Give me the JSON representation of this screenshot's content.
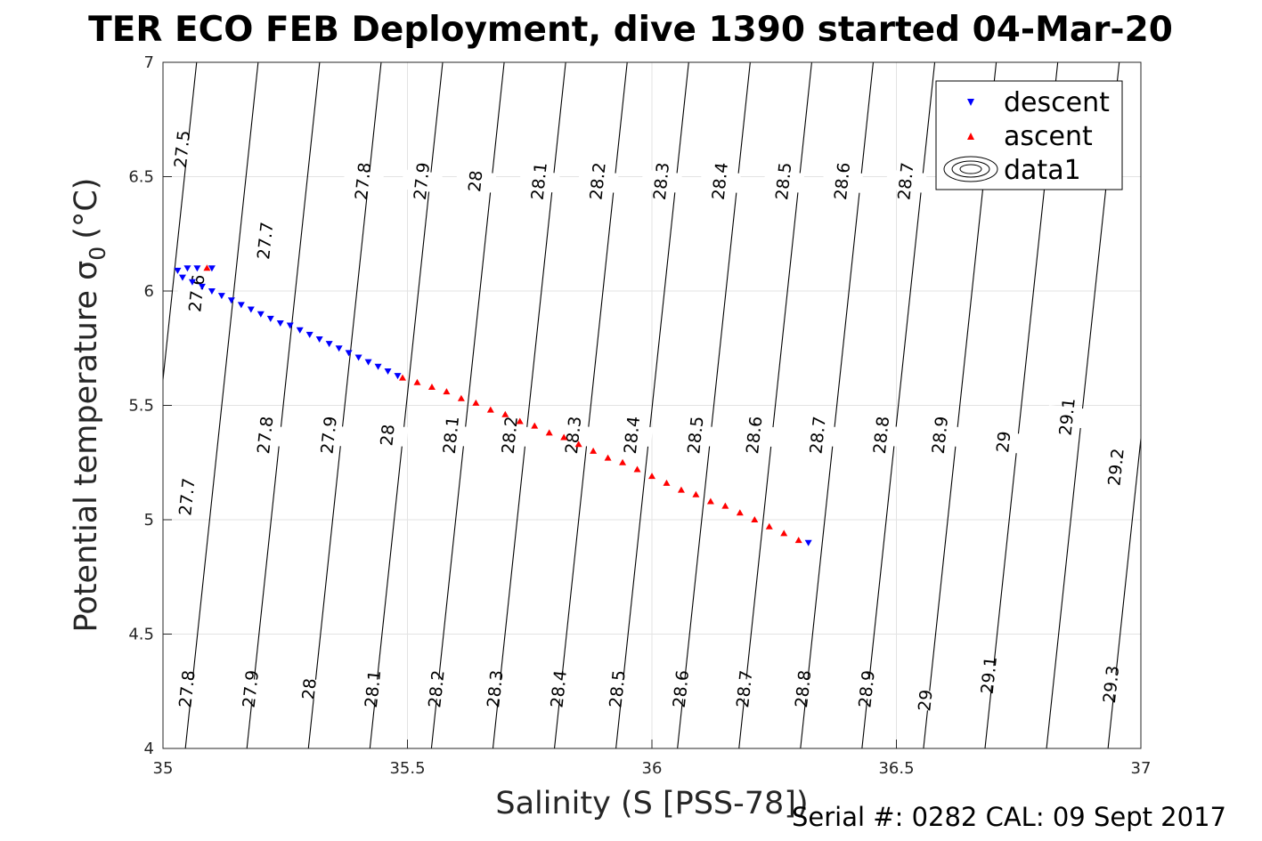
{
  "chart_data": {
    "type": "scatter",
    "title": "TER ECO FEB Deployment, dive 1390 started 04-Mar-20",
    "xlabel": "Salinity (S [PSS-78])",
    "ylabel": "Potential temperature σ",
    "ylabel_subscript": "0",
    "ylabel_unit": "(°C)",
    "xlim": [
      35,
      37
    ],
    "ylim": [
      4,
      7
    ],
    "xticks": [
      "35",
      "35.5",
      "36",
      "36.5",
      "37"
    ],
    "yticks": [
      "4",
      "4.5",
      "5",
      "5.5",
      "6",
      "6.5",
      "7"
    ],
    "grid": true,
    "legend_position": "top-right",
    "series": [
      {
        "name": "descent",
        "marker": "triangle-down",
        "color": "#0000ff",
        "points": [
          [
            35.03,
            6.09
          ],
          [
            35.05,
            6.1
          ],
          [
            35.07,
            6.1
          ],
          [
            35.1,
            6.1
          ],
          [
            35.04,
            6.06
          ],
          [
            35.06,
            6.04
          ],
          [
            35.08,
            6.02
          ],
          [
            35.1,
            6.0
          ],
          [
            35.12,
            5.98
          ],
          [
            35.14,
            5.96
          ],
          [
            35.16,
            5.94
          ],
          [
            35.18,
            5.92
          ],
          [
            35.2,
            5.9
          ],
          [
            35.22,
            5.88
          ],
          [
            35.24,
            5.86
          ],
          [
            35.26,
            5.85
          ],
          [
            35.28,
            5.83
          ],
          [
            35.3,
            5.81
          ],
          [
            35.32,
            5.79
          ],
          [
            35.34,
            5.77
          ],
          [
            35.36,
            5.75
          ],
          [
            35.38,
            5.73
          ],
          [
            35.4,
            5.71
          ],
          [
            35.42,
            5.69
          ],
          [
            35.44,
            5.67
          ],
          [
            35.46,
            5.65
          ],
          [
            35.48,
            5.63
          ],
          [
            36.32,
            4.9
          ]
        ]
      },
      {
        "name": "ascent",
        "marker": "triangle-up",
        "color": "#ff0000",
        "points": [
          [
            35.09,
            6.1
          ],
          [
            35.49,
            5.62
          ],
          [
            35.52,
            5.6
          ],
          [
            35.55,
            5.58
          ],
          [
            35.58,
            5.56
          ],
          [
            35.61,
            5.53
          ],
          [
            35.64,
            5.51
          ],
          [
            35.67,
            5.48
          ],
          [
            35.7,
            5.46
          ],
          [
            35.73,
            5.43
          ],
          [
            35.76,
            5.41
          ],
          [
            35.79,
            5.38
          ],
          [
            35.82,
            5.36
          ],
          [
            35.85,
            5.33
          ],
          [
            35.88,
            5.3
          ],
          [
            35.91,
            5.27
          ],
          [
            35.94,
            5.25
          ],
          [
            35.97,
            5.22
          ],
          [
            36.0,
            5.19
          ],
          [
            36.03,
            5.16
          ],
          [
            36.06,
            5.13
          ],
          [
            36.09,
            5.11
          ],
          [
            36.12,
            5.08
          ],
          [
            36.15,
            5.06
          ],
          [
            36.18,
            5.03
          ],
          [
            36.21,
            5.0
          ],
          [
            36.24,
            4.97
          ],
          [
            36.27,
            4.94
          ],
          [
            36.3,
            4.91
          ]
        ]
      },
      {
        "name": "data1",
        "type": "contour",
        "color": "#000000",
        "levels": [
          "27.5",
          "27.6",
          "27.7",
          "27.8",
          "27.9",
          "28",
          "28.1",
          "28.2",
          "28.3",
          "28.4",
          "28.5",
          "28.6",
          "28.7",
          "28.8",
          "28.9",
          "29",
          "29.1",
          "29.2",
          "29.3"
        ]
      }
    ],
    "contour_labels": [
      {
        "text": "27.5",
        "x": 35.04,
        "y": 6.62
      },
      {
        "text": "27.6",
        "x": 35.07,
        "y": 5.99
      },
      {
        "text": "27.7",
        "x": 35.21,
        "y": 6.22
      },
      {
        "text": "27.8",
        "x": 35.41,
        "y": 6.48
      },
      {
        "text": "27.9",
        "x": 35.53,
        "y": 6.48
      },
      {
        "text": "28",
        "x": 35.64,
        "y": 6.48
      },
      {
        "text": "28.1",
        "x": 35.77,
        "y": 6.48
      },
      {
        "text": "28.2",
        "x": 35.89,
        "y": 6.48
      },
      {
        "text": "28.3",
        "x": 36.02,
        "y": 6.48
      },
      {
        "text": "28.4",
        "x": 36.14,
        "y": 6.48
      },
      {
        "text": "28.5",
        "x": 36.27,
        "y": 6.48
      },
      {
        "text": "28.6",
        "x": 36.39,
        "y": 6.48
      },
      {
        "text": "28.7",
        "x": 36.52,
        "y": 6.48
      },
      {
        "text": "27.7",
        "x": 35.05,
        "y": 5.1
      },
      {
        "text": "27.8",
        "x": 35.21,
        "y": 5.37
      },
      {
        "text": "27.9",
        "x": 35.34,
        "y": 5.37
      },
      {
        "text": "28",
        "x": 35.46,
        "y": 5.37
      },
      {
        "text": "28.1",
        "x": 35.59,
        "y": 5.37
      },
      {
        "text": "28.2",
        "x": 35.71,
        "y": 5.37
      },
      {
        "text": "28.3",
        "x": 35.84,
        "y": 5.37
      },
      {
        "text": "28.4",
        "x": 35.96,
        "y": 5.37
      },
      {
        "text": "28.5",
        "x": 36.09,
        "y": 5.37
      },
      {
        "text": "28.6",
        "x": 36.21,
        "y": 5.37
      },
      {
        "text": "28.7",
        "x": 36.34,
        "y": 5.37
      },
      {
        "text": "28.8",
        "x": 36.47,
        "y": 5.37
      },
      {
        "text": "28.9",
        "x": 36.59,
        "y": 5.37
      },
      {
        "text": "29",
        "x": 36.72,
        "y": 5.34
      },
      {
        "text": "29.1",
        "x": 36.85,
        "y": 5.45
      },
      {
        "text": "29.2",
        "x": 36.95,
        "y": 5.23
      },
      {
        "text": "27.8",
        "x": 35.05,
        "y": 4.26
      },
      {
        "text": "27.9",
        "x": 35.18,
        "y": 4.26
      },
      {
        "text": "28",
        "x": 35.3,
        "y": 4.26
      },
      {
        "text": "28.1",
        "x": 35.43,
        "y": 4.26
      },
      {
        "text": "28.2",
        "x": 35.56,
        "y": 4.26
      },
      {
        "text": "28.3",
        "x": 35.68,
        "y": 4.26
      },
      {
        "text": "28.4",
        "x": 35.81,
        "y": 4.26
      },
      {
        "text": "28.5",
        "x": 35.93,
        "y": 4.26
      },
      {
        "text": "28.6",
        "x": 36.06,
        "y": 4.26
      },
      {
        "text": "28.7",
        "x": 36.19,
        "y": 4.26
      },
      {
        "text": "28.8",
        "x": 36.31,
        "y": 4.26
      },
      {
        "text": "28.9",
        "x": 36.44,
        "y": 4.26
      },
      {
        "text": "29",
        "x": 36.56,
        "y": 4.21
      },
      {
        "text": "29.1",
        "x": 36.69,
        "y": 4.32
      },
      {
        "text": "29.3",
        "x": 36.94,
        "y": 4.28
      }
    ]
  },
  "footer": {
    "serial": "Serial #: 0282  CAL: 09 Sept 2017"
  }
}
